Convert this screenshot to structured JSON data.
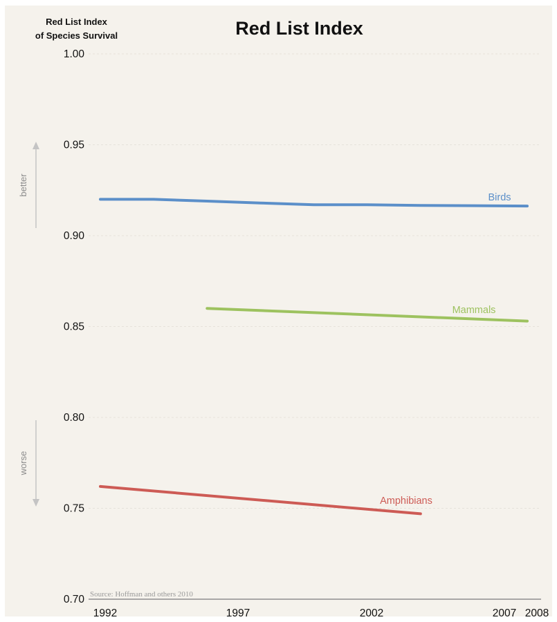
{
  "chart_data": {
    "type": "line",
    "title": "Red List Index",
    "ylabel_lines": [
      "Red List Index",
      "of Species Survival"
    ],
    "ylim": [
      0.7,
      1.0
    ],
    "yticks": [
      "0.70",
      "0.75",
      "0.80",
      "0.85",
      "0.90",
      "0.95",
      "1.00"
    ],
    "xlim": [
      1992,
      2008
    ],
    "xticks": [
      "1992",
      "1997",
      "2002",
      "2007",
      "2008"
    ],
    "grid": true,
    "series": [
      {
        "name": "Birds",
        "color": "#5b8fc9",
        "points": [
          [
            1992,
            0.92
          ],
          [
            1994,
            0.92
          ],
          [
            1996,
            0.919
          ],
          [
            1998,
            0.918
          ],
          [
            2000,
            0.917
          ],
          [
            2002,
            0.917
          ],
          [
            2004,
            0.9166
          ],
          [
            2006,
            0.9165
          ],
          [
            2008,
            0.9163
          ]
        ]
      },
      {
        "name": "Mammals",
        "color": "#9dc25f",
        "points": [
          [
            1996,
            0.86
          ],
          [
            2008,
            0.853
          ]
        ]
      },
      {
        "name": "Amphibians",
        "color": "#cd5b55",
        "points": [
          [
            1992,
            0.762
          ],
          [
            2004,
            0.747
          ]
        ]
      }
    ],
    "indicators": {
      "better": "better",
      "worse": "worse"
    },
    "source": "Source: Hoffman and others 2010"
  }
}
